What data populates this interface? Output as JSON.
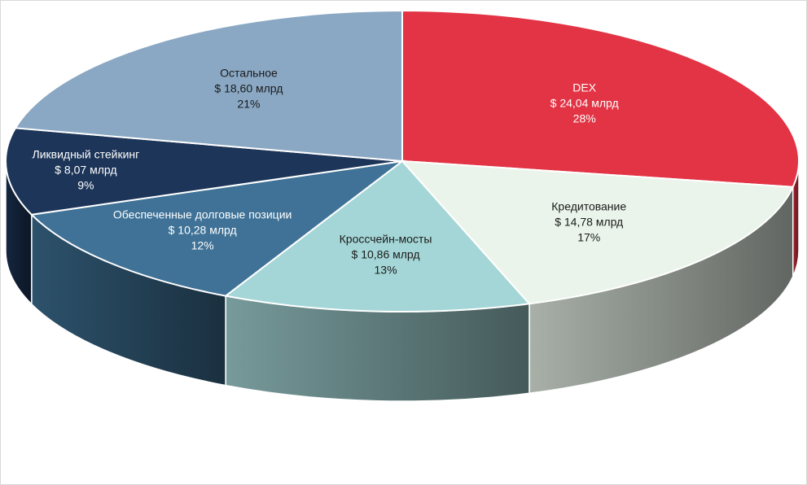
{
  "chart_data": {
    "type": "pie",
    "style": "3d",
    "title": "",
    "unit_prefix": "$",
    "unit_suffix": "млрд",
    "slices": [
      {
        "name": "DEX",
        "value_label": "$ 24,04 млрд",
        "value": 24.04,
        "percent": 28,
        "percent_label": "28%",
        "color": "#e23444",
        "text_color": "#ffffff"
      },
      {
        "name": "Кредитование",
        "value_label": "$ 14,78 млрд",
        "value": 14.78,
        "percent": 17,
        "percent_label": "17%",
        "color": "#eaf4ea",
        "text_color": "#1a1a1a"
      },
      {
        "name": "Кроссчейн-мосты",
        "value_label": "$ 10,86 млрд",
        "value": 10.86,
        "percent": 13,
        "percent_label": "13%",
        "color": "#a5d6d7",
        "text_color": "#1a1a1a"
      },
      {
        "name": "Обеспеченные долговые позиции",
        "value_label": "$ 10,28 млрд",
        "value": 10.28,
        "percent": 12,
        "percent_label": "12%",
        "color": "#3f7296",
        "text_color": "#ffffff"
      },
      {
        "name": "Ликвидный стейкинг",
        "value_label": "$ 8,07 млрд",
        "value": 8.07,
        "percent": 9,
        "percent_label": "9%",
        "color": "#1c3558",
        "text_color": "#ffffff"
      },
      {
        "name": "Остальное",
        "value_label": "$ 18,60 млрд",
        "value": 18.6,
        "percent": 21,
        "percent_label": "21%",
        "color": "#8aa8c4",
        "text_color": "#1a1a1a"
      }
    ]
  }
}
